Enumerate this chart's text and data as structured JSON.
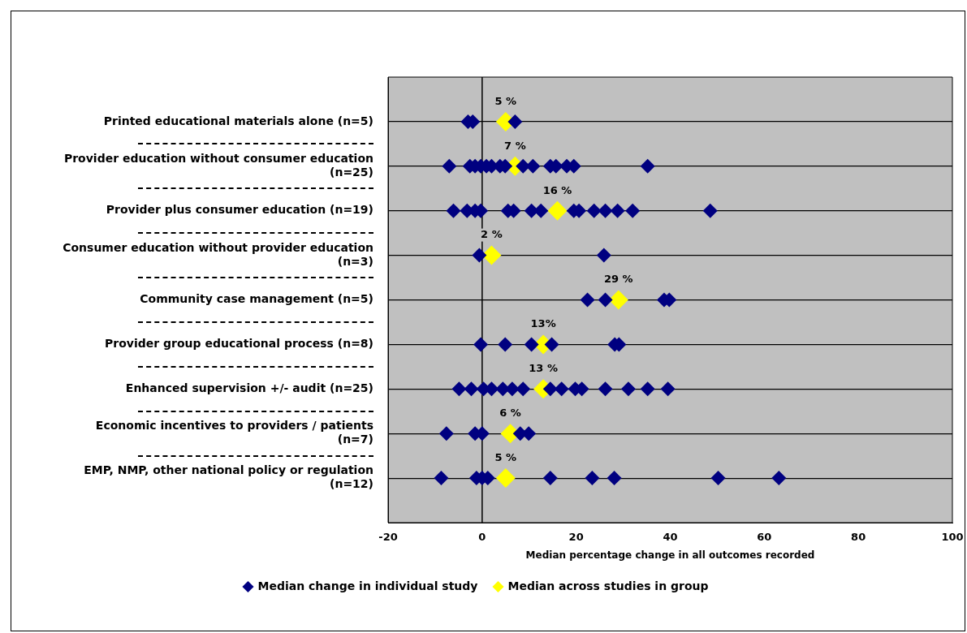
{
  "chart_data": {
    "type": "scatter",
    "orientation": "horizontal",
    "xlabel": "Median percentage change in all outcomes recorded",
    "categories": [
      "Printed educational materials alone (n=5)",
      "Provider education without consumer education (n=25)",
      "Provider plus consumer education (n=19)",
      "Consumer education without provider education (n=3)",
      "Community case management (n=5)",
      "Provider group educational process (n=8)",
      "Enhanced supervision +/- audit (n=25)",
      "Economic incentives to providers / patients (n=7)",
      "EMP, NMP, other national policy or regulation (n=12)"
    ],
    "xlim": [
      -20,
      100
    ],
    "xticks": [
      -20,
      0,
      20,
      40,
      60,
      80,
      100
    ],
    "grid": "y",
    "legend": "bottom",
    "marker": "diamond",
    "ref_lines": [
      {
        "axis": "x",
        "value": 0,
        "color": "#000000"
      }
    ],
    "series": [
      {
        "name": "Median change in individual study",
        "color": "#000080",
        "x": [
          "Printed educational materials alone (n=5)",
          "Printed educational materials alone (n=5)",
          "Printed educational materials alone (n=5)",
          "Provider education without consumer education (n=25)",
          "Provider education without consumer education (n=25)",
          "Provider education without consumer education (n=25)",
          "Provider education without consumer education (n=25)",
          "Provider education without consumer education (n=25)",
          "Provider education without consumer education (n=25)",
          "Provider education without consumer education (n=25)",
          "Provider education without consumer education (n=25)",
          "Provider education without consumer education (n=25)",
          "Provider education without consumer education (n=25)",
          "Provider education without consumer education (n=25)",
          "Provider education without consumer education (n=25)",
          "Provider education without consumer education (n=25)",
          "Provider education without consumer education (n=25)",
          "Provider education without consumer education (n=25)",
          "Provider plus consumer education (n=19)",
          "Provider plus consumer education (n=19)",
          "Provider plus consumer education (n=19)",
          "Provider plus consumer education (n=19)",
          "Provider plus consumer education (n=19)",
          "Provider plus consumer education (n=19)",
          "Provider plus consumer education (n=19)",
          "Provider plus consumer education (n=19)",
          "Provider plus consumer education (n=19)",
          "Provider plus consumer education (n=19)",
          "Provider plus consumer education (n=19)",
          "Provider plus consumer education (n=19)",
          "Provider plus consumer education (n=19)",
          "Provider plus consumer education (n=19)",
          "Provider plus consumer education (n=19)",
          "Consumer education without provider education (n=3)",
          "Consumer education without provider education (n=3)",
          "Community case management (n=5)",
          "Community case management (n=5)",
          "Community case management (n=5)",
          "Community case management (n=5)",
          "Provider group educational process (n=8)",
          "Provider group educational process (n=8)",
          "Provider group educational process (n=8)",
          "Provider group educational process (n=8)",
          "Provider group educational process (n=8)",
          "Provider group educational process (n=8)",
          "Enhanced supervision +/- audit (n=25)",
          "Enhanced supervision +/- audit (n=25)",
          "Enhanced supervision +/- audit (n=25)",
          "Enhanced supervision +/- audit (n=25)",
          "Enhanced supervision +/- audit (n=25)",
          "Enhanced supervision +/- audit (n=25)",
          "Enhanced supervision +/- audit (n=25)",
          "Enhanced supervision +/- audit (n=25)",
          "Enhanced supervision +/- audit (n=25)",
          "Enhanced supervision +/- audit (n=25)",
          "Enhanced supervision +/- audit (n=25)",
          "Enhanced supervision +/- audit (n=25)",
          "Enhanced supervision +/- audit (n=25)",
          "Enhanced supervision +/- audit (n=25)",
          "Enhanced supervision +/- audit (n=25)",
          "Economic incentives to providers / patients (n=7)",
          "Economic incentives to providers / patients (n=7)",
          "Economic incentives to providers / patients (n=7)",
          "Economic incentives to providers / patients (n=7)",
          "Economic incentives to providers / patients (n=7)",
          "EMP, NMP, other national policy or regulation (n=12)",
          "EMP, NMP, other national policy or regulation (n=12)",
          "EMP, NMP, other national policy or regulation (n=12)",
          "EMP, NMP, other national policy or regulation (n=12)",
          "EMP, NMP, other national policy or regulation (n=12)",
          "EMP, NMP, other national policy or regulation (n=12)",
          "EMP, NMP, other national policy or regulation (n=12)",
          "EMP, NMP, other national policy or regulation (n=12)",
          "EMP, NMP, other national policy or regulation (n=12)"
        ],
        "values": [
          -3,
          -2,
          7,
          -7,
          -2.6,
          -1.5,
          -0.3,
          0.9,
          2,
          3.8,
          4.9,
          8.7,
          10.8,
          14.5,
          15.7,
          18,
          19.5,
          35.2,
          -6.1,
          -3.2,
          -1.5,
          -0.3,
          5.5,
          6.7,
          10.5,
          12.5,
          19.5,
          20.6,
          23.8,
          26.2,
          28.8,
          32,
          48.5,
          -0.6,
          25.9,
          22.4,
          26.2,
          38.7,
          39.8,
          -0.3,
          4.9,
          10.5,
          14.8,
          28.2,
          29.1,
          -4.9,
          -2.3,
          0.3,
          2,
          4.4,
          6.4,
          8.7,
          14.5,
          16.9,
          19.8,
          21.2,
          26.2,
          31.1,
          35.2,
          39.5,
          -7.6,
          -1.5,
          0,
          8.1,
          9.9,
          -8.7,
          -1.2,
          0,
          1.2,
          14.5,
          23.4,
          28.1,
          50.2,
          63.1
        ]
      },
      {
        "name": "Median across studies in group",
        "color": "#ffff00",
        "x": [
          "Printed educational materials alone (n=5)",
          "Provider education without consumer education (n=25)",
          "Provider plus consumer education (n=19)",
          "Consumer education without provider education (n=3)",
          "Community case management (n=5)",
          "Provider group educational process (n=8)",
          "Enhanced supervision +/- audit (n=25)",
          "Economic incentives to providers / patients (n=7)",
          "EMP, NMP, other national policy or regulation (n=12)"
        ],
        "values": [
          5,
          7,
          16,
          2,
          29,
          13,
          13,
          6,
          5
        ],
        "value_labels": [
          "5 %",
          "7 %",
          "16 %",
          "2 %",
          "29 %",
          "13%",
          "13 %",
          "6 %",
          "5 %"
        ]
      }
    ]
  }
}
